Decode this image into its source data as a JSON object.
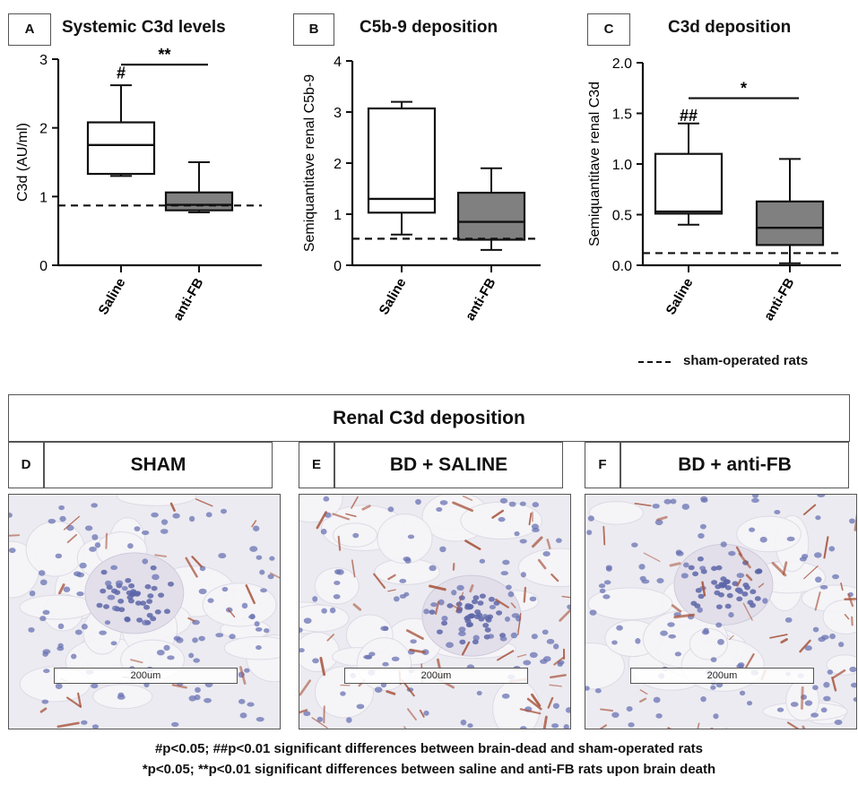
{
  "figure": {
    "legend_label": "sham-operated rats",
    "footnote_1": "#p<0.05; ##p<0.01 significant differences between brain-dead and sham-operated rats",
    "footnote_2": "*p<0.05; **p<0.01 significant differences between saline and anti-FB rats upon brain death"
  },
  "chart_data": [
    {
      "panel": "A",
      "type": "box",
      "title": "Systemic C3d levels",
      "ylabel": "C3d (AU/ml)",
      "ylim": [
        0,
        3
      ],
      "yticks": [
        "0",
        "1",
        "2",
        "3"
      ],
      "categories": [
        "Saline",
        "anti-FB"
      ],
      "boxes": [
        {
          "min": 1.3,
          "q1": 1.33,
          "median": 1.75,
          "q3": 2.08,
          "max": 2.62,
          "fill": "#ffffff"
        },
        {
          "min": 0.77,
          "q1": 0.8,
          "median": 0.88,
          "q3": 1.06,
          "max": 1.5,
          "fill": "#808080"
        }
      ],
      "sham_reference": 0.87,
      "annotations": [
        {
          "text": "#",
          "category": 0,
          "value": 2.8
        },
        {
          "text": "**",
          "between": [
            0,
            1
          ],
          "bar_value": 2.92
        }
      ]
    },
    {
      "panel": "B",
      "type": "box",
      "title": "C5b-9 deposition",
      "ylabel": "Semiquantitave renal C5b-9",
      "ylim": [
        0,
        4
      ],
      "yticks": [
        "0",
        "1",
        "2",
        "3",
        "4"
      ],
      "categories": [
        "Saline",
        "anti-FB"
      ],
      "boxes": [
        {
          "min": 0.6,
          "q1": 1.03,
          "median": 1.3,
          "q3": 3.07,
          "max": 3.2,
          "fill": "#ffffff"
        },
        {
          "min": 0.3,
          "q1": 0.5,
          "median": 0.85,
          "q3": 1.42,
          "max": 1.9,
          "fill": "#808080"
        }
      ],
      "sham_reference": 0.52,
      "annotations": []
    },
    {
      "panel": "C",
      "type": "box",
      "title": "C3d deposition",
      "ylabel": "Semiquantitave renal C3d",
      "ylim": [
        0,
        2
      ],
      "yticks": [
        "0.0",
        "0.5",
        "1.0",
        "1.5",
        "2.0"
      ],
      "categories": [
        "Saline",
        "anti-FB"
      ],
      "boxes": [
        {
          "min": 0.4,
          "q1": 0.51,
          "median": 0.53,
          "q3": 1.1,
          "max": 1.4,
          "fill": "#ffffff"
        },
        {
          "min": 0.02,
          "q1": 0.2,
          "median": 0.37,
          "q3": 0.63,
          "max": 1.05,
          "fill": "#808080"
        }
      ],
      "sham_reference": 0.12,
      "annotations": [
        {
          "text": "##",
          "category": 0,
          "value": 1.48
        },
        {
          "text": "*",
          "between": [
            0,
            1
          ],
          "bar_value": 1.65
        }
      ]
    }
  ],
  "micrographs": {
    "section_title": "Renal C3d deposition",
    "scale_label": "200um",
    "panels": [
      {
        "letter": "D",
        "title": "SHAM",
        "stain_level": 0.2
      },
      {
        "letter": "E",
        "title": "BD + SALINE",
        "stain_level": 0.8
      },
      {
        "letter": "F",
        "title": "BD + anti-FB",
        "stain_level": 0.5
      }
    ]
  }
}
